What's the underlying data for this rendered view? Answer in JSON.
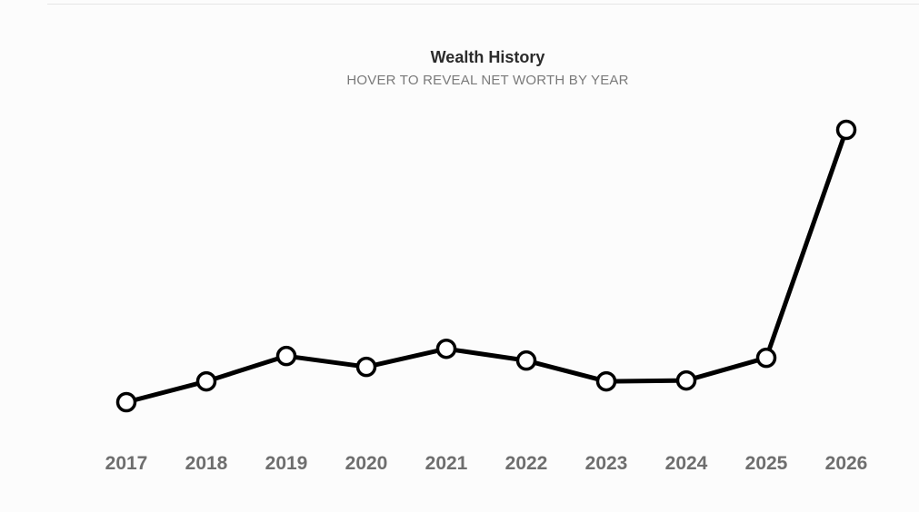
{
  "chart_data": {
    "type": "line",
    "title": "Wealth History",
    "subtitle": "HOVER TO REVEAL NET WORTH BY YEAR",
    "categories": [
      "2017",
      "2018",
      "2019",
      "2020",
      "2021",
      "2022",
      "2023",
      "2024",
      "2025",
      "2026"
    ],
    "series": [
      {
        "values": [
          0,
          23,
          51,
          39,
          59,
          46,
          23,
          24,
          49,
          301
        ]
      }
    ],
    "ylim": [
      0,
      301
    ],
    "grid": false,
    "legend": "none",
    "line_color": "#000000",
    "marker_fill": "#ffffff",
    "tick_color": "#6e6e6e"
  }
}
